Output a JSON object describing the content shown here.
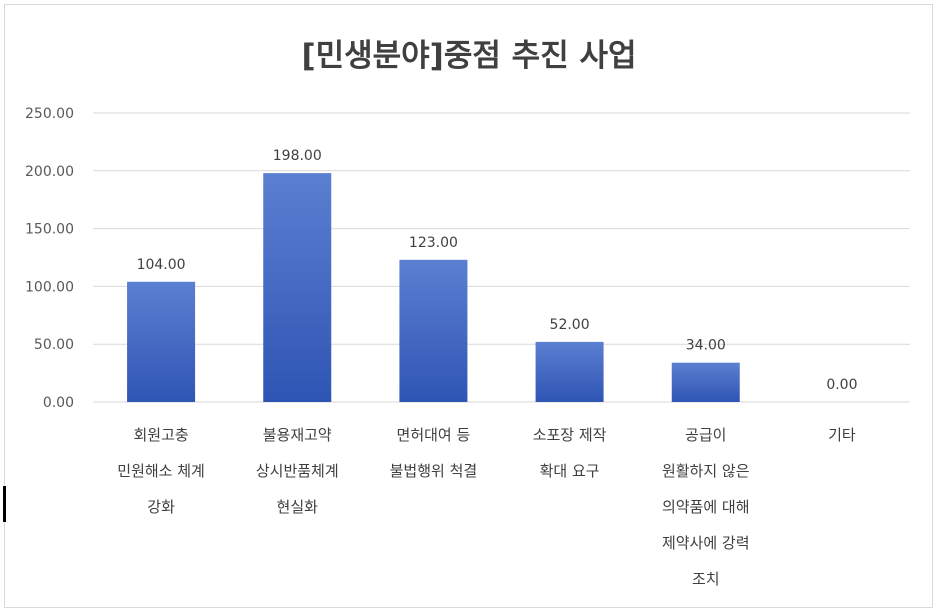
{
  "chart_data": {
    "type": "bar",
    "title": "[민생분야]중점 추진 사업",
    "xlabel": "",
    "ylabel": "",
    "ylim": [
      0,
      250
    ],
    "y_ticks": [
      "0.00",
      "50.00",
      "100.00",
      "150.00",
      "200.00",
      "250.00"
    ],
    "grid": true,
    "categories": [
      [
        "회원고충",
        "민원해소 체계",
        "강화"
      ],
      [
        "불용재고약",
        "상시반품체계",
        "현실화"
      ],
      [
        "면허대여 등",
        "불법행위 척결"
      ],
      [
        "소포장 제작",
        "확대 요구"
      ],
      [
        "공급이",
        "원활하지 않은",
        "의약품에 대해",
        "제약사에 강력",
        "조치"
      ],
      [
        "기타"
      ]
    ],
    "values": [
      104,
      198,
      123,
      52,
      34,
      0
    ],
    "data_labels": [
      "104.00",
      "198.00",
      "123.00",
      "52.00",
      "34.00",
      "0.00"
    ],
    "colors": {
      "bar_top": "#5b7fd1",
      "bar_bottom": "#2f55b4",
      "grid": "#d9d9d9"
    }
  }
}
